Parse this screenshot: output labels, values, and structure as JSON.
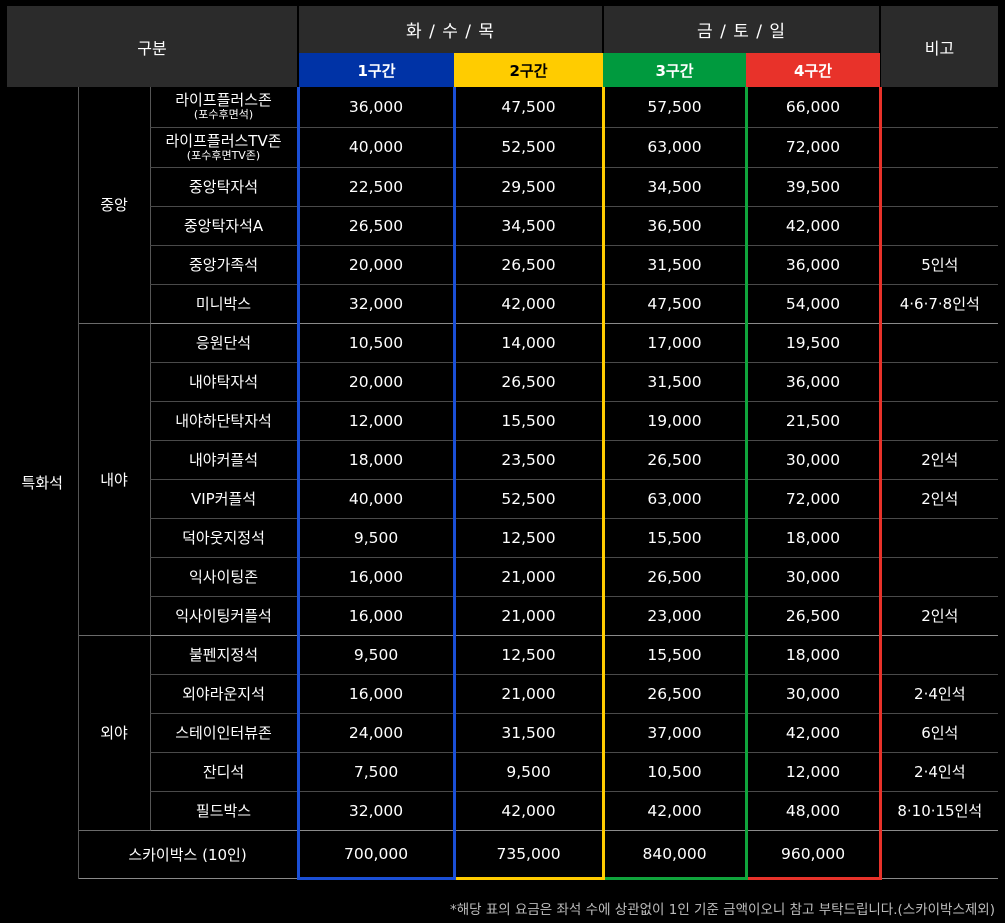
{
  "header": {
    "category": "구분",
    "weekdays": "화 / 수 / 목",
    "weekend": "금 / 토 / 일",
    "note": "비고",
    "tiers": [
      "1구간",
      "2구간",
      "3구간",
      "4구간"
    ]
  },
  "category": "특화석",
  "zones": [
    {
      "name": "중앙",
      "rows": [
        {
          "seat": "라이프플러스존",
          "sub": "(포수후면석)",
          "prices": [
            "36,000",
            "47,500",
            "57,500",
            "66,000"
          ],
          "note": ""
        },
        {
          "seat": "라이프플러스TV존",
          "sub": "(포수후면TV존)",
          "prices": [
            "40,000",
            "52,500",
            "63,000",
            "72,000"
          ],
          "note": ""
        },
        {
          "seat": "중앙탁자석",
          "prices": [
            "22,500",
            "29,500",
            "34,500",
            "39,500"
          ],
          "note": ""
        },
        {
          "seat": "중앙탁자석A",
          "prices": [
            "26,500",
            "34,500",
            "36,500",
            "42,000"
          ],
          "note": ""
        },
        {
          "seat": "중앙가족석",
          "prices": [
            "20,000",
            "26,500",
            "31,500",
            "36,000"
          ],
          "note": "5인석"
        },
        {
          "seat": "미니박스",
          "prices": [
            "32,000",
            "42,000",
            "47,500",
            "54,000"
          ],
          "note": "4·6·7·8인석"
        }
      ]
    },
    {
      "name": "내야",
      "rows": [
        {
          "seat": "응원단석",
          "prices": [
            "10,500",
            "14,000",
            "17,000",
            "19,500"
          ],
          "note": ""
        },
        {
          "seat": "내야탁자석",
          "prices": [
            "20,000",
            "26,500",
            "31,500",
            "36,000"
          ],
          "note": ""
        },
        {
          "seat": "내야하단탁자석",
          "prices": [
            "12,000",
            "15,500",
            "19,000",
            "21,500"
          ],
          "note": ""
        },
        {
          "seat": "내야커플석",
          "prices": [
            "18,000",
            "23,500",
            "26,500",
            "30,000"
          ],
          "note": "2인석"
        },
        {
          "seat": "VIP커플석",
          "prices": [
            "40,000",
            "52,500",
            "63,000",
            "72,000"
          ],
          "note": "2인석"
        },
        {
          "seat": "덕아웃지정석",
          "prices": [
            "9,500",
            "12,500",
            "15,500",
            "18,000"
          ],
          "note": ""
        },
        {
          "seat": "익사이팅존",
          "prices": [
            "16,000",
            "21,000",
            "26,500",
            "30,000"
          ],
          "note": ""
        },
        {
          "seat": "익사이팅커플석",
          "prices": [
            "16,000",
            "21,000",
            "23,000",
            "26,500"
          ],
          "note": "2인석"
        }
      ]
    },
    {
      "name": "외야",
      "rows": [
        {
          "seat": "불펜지정석",
          "prices": [
            "9,500",
            "12,500",
            "15,500",
            "18,000"
          ],
          "note": ""
        },
        {
          "seat": "외야라운지석",
          "prices": [
            "16,000",
            "21,000",
            "26,500",
            "30,000"
          ],
          "note": "2·4인석"
        },
        {
          "seat": "스테이인터뷰존",
          "prices": [
            "24,000",
            "31,500",
            "37,000",
            "42,000"
          ],
          "note": "6인석"
        },
        {
          "seat": "잔디석",
          "prices": [
            "7,500",
            "9,500",
            "10,500",
            "12,000"
          ],
          "note": "2·4인석"
        },
        {
          "seat": "필드박스",
          "prices": [
            "32,000",
            "42,000",
            "42,000",
            "48,000"
          ],
          "note": "8·10·15인석"
        }
      ]
    }
  ],
  "skybox": {
    "seat": "스카이박스 (10인)",
    "prices": [
      "700,000",
      "735,000",
      "840,000",
      "960,000"
    ],
    "note": ""
  },
  "footnote": "*해당 표의 요금은 좌석 수에 상관없이 1인 기준 금액이오니 참고 부탁드립니다.(스카이박스제외)",
  "colors": {
    "tier1": "#0033a6",
    "tier2": "#ffcc00",
    "tier3": "#009a3e",
    "tier4": "#e8322a",
    "header": "#2b2b2b"
  }
}
